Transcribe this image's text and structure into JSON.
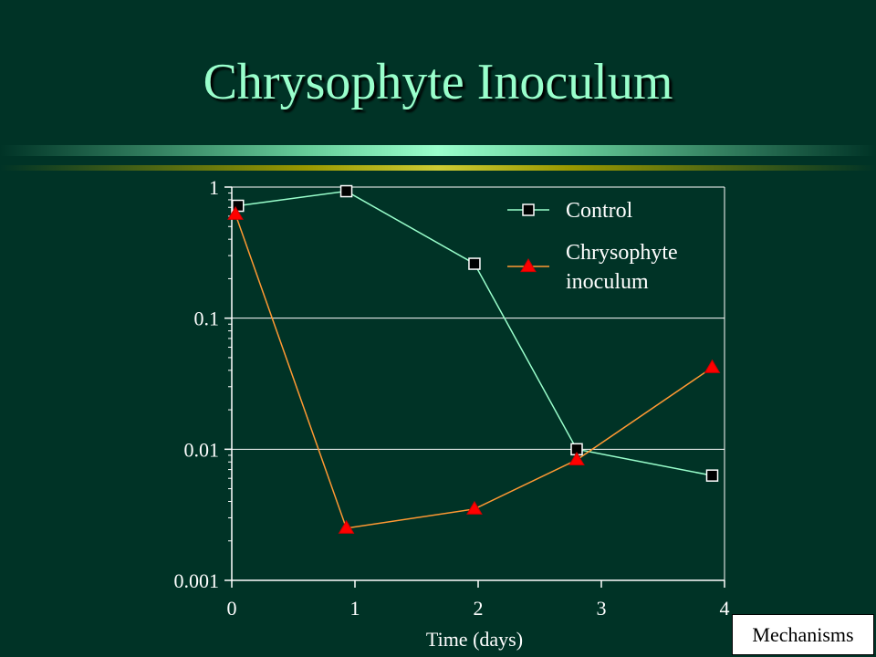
{
  "slide": {
    "title": "Chrysophyte Inoculum",
    "nav_button_label": "Mechanisms"
  },
  "colors": {
    "background": "#003326",
    "title": "#99ffcc",
    "control_line": "#99ffcc",
    "chrysophyte_line": "#ff9933",
    "triangle_fill": "#ff0000",
    "square_fill": "#000000",
    "axis": "#ffffff"
  },
  "chart_data": {
    "type": "line",
    "title": "",
    "xlabel": "Time (days)",
    "ylabel": "",
    "xlim": [
      0,
      4
    ],
    "ylim": [
      0.001,
      1
    ],
    "yscale": "log",
    "x_ticks": [
      "0",
      "1",
      "2",
      "3",
      "4"
    ],
    "y_ticks": [
      "1",
      "0.1",
      "0.01",
      "0.001"
    ],
    "grid": "horizontal",
    "legend_position": "top-right",
    "series": [
      {
        "name": "Control",
        "marker": "square",
        "x": [
          0.05,
          0.93,
          1.97,
          2.8,
          3.9
        ],
        "y": [
          0.72,
          0.93,
          0.26,
          0.01,
          0.0063
        ]
      },
      {
        "name": "Chrysophyte inoculum",
        "name_lines": [
          "Chrysophyte",
          "inoculum"
        ],
        "marker": "triangle",
        "x": [
          0.03,
          0.93,
          1.97,
          2.8,
          3.9
        ],
        "y": [
          0.62,
          0.0025,
          0.0035,
          0.0083,
          0.042
        ]
      }
    ]
  }
}
